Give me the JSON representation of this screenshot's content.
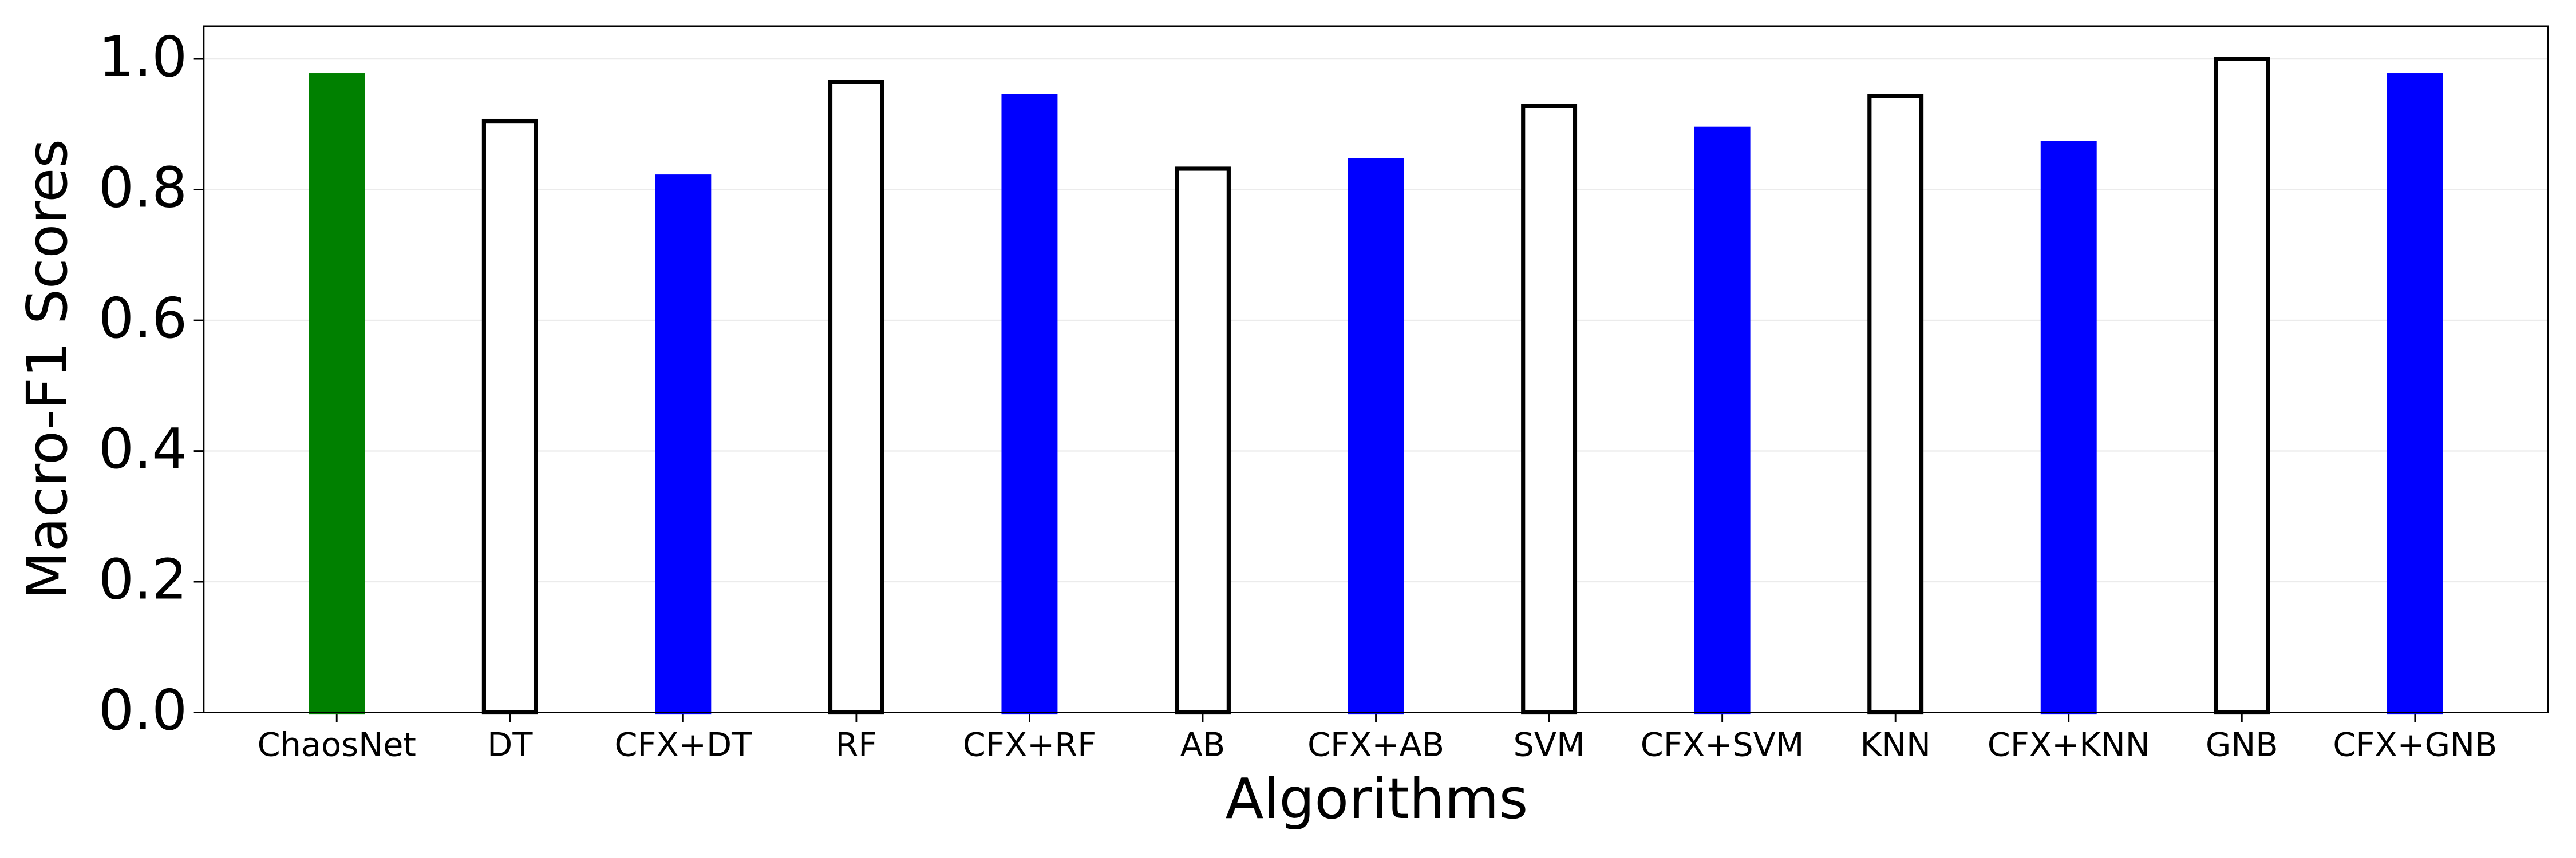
{
  "chart_data": {
    "type": "bar",
    "xlabel": "Algorithms",
    "ylabel": "Macro-F1 Scores",
    "categories": [
      "ChaosNet",
      "DT",
      "CFX+DT",
      "RF",
      "CFX+RF",
      "AB",
      "CFX+AB",
      "SVM",
      "CFX+SVM",
      "KNN",
      "CFX+KNN",
      "GNB",
      "CFX+GNB"
    ],
    "values": [
      0.975,
      0.905,
      0.82,
      0.965,
      0.943,
      0.832,
      0.845,
      0.928,
      0.893,
      0.943,
      0.871,
      1.0,
      0.975
    ],
    "colors": [
      "green",
      "white",
      "blue",
      "white",
      "blue",
      "white",
      "blue",
      "white",
      "blue",
      "white",
      "blue",
      "white",
      "blue"
    ],
    "edgecolors": [
      "green",
      "black",
      "blue",
      "black",
      "blue",
      "black",
      "blue",
      "black",
      "blue",
      "black",
      "blue",
      "black",
      "blue"
    ],
    "ylim": [
      0,
      1.05
    ],
    "yticks": [
      {
        "value": 0,
        "label": "0.0"
      },
      {
        "value": 0.2,
        "label": "0.2"
      },
      {
        "value": 0.4,
        "label": "0.4"
      },
      {
        "value": 0.6,
        "label": "0.6"
      },
      {
        "value": 0.8,
        "label": "0.8"
      },
      {
        "value": 1,
        "label": "1.0"
      }
    ],
    "grid": true
  }
}
